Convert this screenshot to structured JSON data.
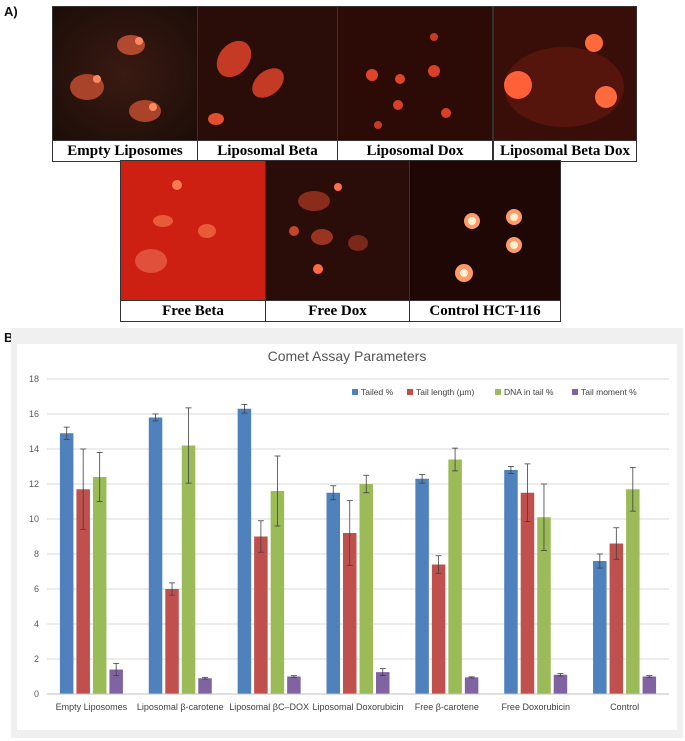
{
  "panel_a_label": "A)",
  "panel_b_label": "B)",
  "images_row1": [
    {
      "caption": "Empty Liposomes"
    },
    {
      "caption": "Liposomal Beta"
    },
    {
      "caption": "Liposomal Dox"
    },
    {
      "caption": "Liposomal Beta Dox"
    }
  ],
  "images_row2": [
    {
      "caption": "Free Beta"
    },
    {
      "caption": "Free Dox"
    },
    {
      "caption": "Control HCT-116"
    }
  ],
  "chart_data": {
    "type": "bar",
    "title": "Comet Assay Parameters",
    "xlabel": "",
    "ylabel": "",
    "ylim": [
      0,
      18
    ],
    "yticks": [
      "0",
      "2",
      "4",
      "6",
      "8",
      "10",
      "12",
      "14",
      "16",
      "18"
    ],
    "grid": true,
    "legend_position": "top-right",
    "categories": [
      "Empty Liposomes",
      "Liposomal β-carotene",
      "Liposomal βC–DOX",
      "Liposomal Doxorubicin",
      "Free β-carotene",
      "Free Doxorubicin",
      "Control"
    ],
    "series": [
      {
        "name": "Tailed %",
        "color": "#4f81bd",
        "values": [
          14.9,
          15.8,
          16.3,
          11.5,
          12.3,
          12.8,
          7.6
        ],
        "errors": [
          0.35,
          0.2,
          0.25,
          0.4,
          0.25,
          0.2,
          0.4
        ]
      },
      {
        "name": "Tail length (µm)",
        "color": "#c0504d",
        "values": [
          11.7,
          6.0,
          9.0,
          9.2,
          7.4,
          11.5,
          8.6
        ],
        "errors": [
          2.3,
          0.35,
          0.9,
          1.85,
          0.5,
          1.65,
          0.9
        ]
      },
      {
        "name": "DNA in tail %",
        "color": "#9bbb59",
        "values": [
          12.4,
          14.2,
          11.6,
          12.0,
          13.4,
          10.1,
          11.7
        ],
        "errors": [
          1.4,
          2.15,
          2.0,
          0.5,
          0.65,
          1.9,
          1.25
        ]
      },
      {
        "name": "Tail moment %",
        "color": "#8064a2",
        "values": [
          1.4,
          0.9,
          1.0,
          1.25,
          0.95,
          1.1,
          1.0
        ],
        "errors": [
          0.35,
          0.05,
          0.05,
          0.2,
          0.03,
          0.07,
          0.05
        ]
      }
    ]
  }
}
